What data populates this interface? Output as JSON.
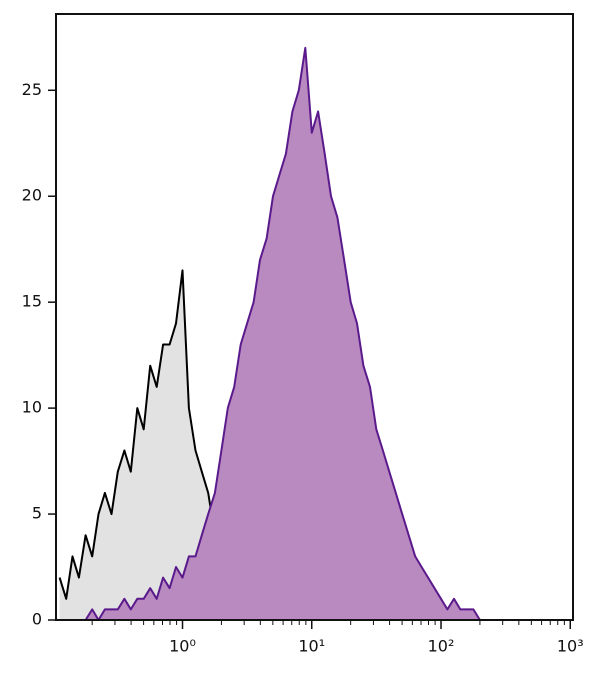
{
  "chart_data": {
    "type": "area",
    "x": [
      0.112,
      0.126,
      0.141,
      0.158,
      0.178,
      0.2,
      0.224,
      0.251,
      0.282,
      0.316,
      0.355,
      0.398,
      0.447,
      0.501,
      0.562,
      0.631,
      0.708,
      0.794,
      0.891,
      1.0,
      1.12,
      1.26,
      1.41,
      1.58,
      1.78,
      2.0,
      2.24,
      2.51,
      2.82,
      3.16,
      3.55,
      3.98,
      4.47,
      5.01,
      5.62,
      6.31,
      7.08,
      7.94,
      8.91,
      10,
      11.2,
      12.6,
      14.1,
      15.8,
      17.8,
      20,
      22.4,
      25.1,
      28.2,
      31.6,
      35.5,
      39.8,
      44.7,
      50.1,
      56.2,
      63.1,
      70.8,
      79.4,
      89.1,
      100,
      112,
      126,
      141,
      158,
      178,
      200
    ],
    "series": [
      {
        "color": "#000000",
        "fill": "#e2e2e2",
        "values": [
          2,
          1,
          3,
          2,
          4,
          3,
          5,
          6,
          5,
          7,
          8,
          7,
          10,
          9,
          12,
          11,
          13,
          13,
          14,
          16.5,
          10,
          8,
          7,
          6,
          4,
          3,
          2,
          1,
          1,
          0.5,
          1,
          0.5,
          0.5,
          0,
          0,
          0,
          0,
          0,
          0,
          0,
          0,
          0,
          0,
          0,
          0,
          0,
          0,
          0,
          0,
          0,
          0,
          0,
          0,
          0,
          0,
          0,
          0,
          0,
          0,
          0,
          0,
          0,
          0,
          0,
          0,
          0
        ]
      },
      {
        "color": "#5b1a8c",
        "fill": "#b98ac0",
        "values": [
          0,
          0,
          0,
          0,
          0,
          0.5,
          0,
          0.5,
          0.5,
          0.5,
          1,
          0.5,
          1,
          1,
          1.5,
          1,
          2,
          1.5,
          2.5,
          2,
          3,
          3,
          4,
          5,
          6,
          8,
          10,
          11,
          13,
          14,
          15,
          17,
          18,
          20,
          21,
          22,
          24,
          25,
          27,
          23,
          24,
          22,
          20,
          19,
          17,
          15,
          14,
          12,
          11,
          9,
          8,
          7,
          6,
          5,
          4,
          3,
          2.5,
          2,
          1.5,
          1,
          0.5,
          1,
          0.5,
          0.5,
          0.5,
          0
        ]
      }
    ],
    "xscale": "log",
    "xlim": [
      0.105,
      1050
    ],
    "xticks": [
      {
        "value": 1,
        "label": "10⁰"
      },
      {
        "value": 10,
        "label": "10¹"
      },
      {
        "value": 100,
        "label": "10²"
      },
      {
        "value": 1000,
        "label": "10³"
      }
    ],
    "ylim": [
      0,
      28.6
    ],
    "yticks": [
      0,
      5,
      10,
      15,
      20,
      25
    ]
  }
}
